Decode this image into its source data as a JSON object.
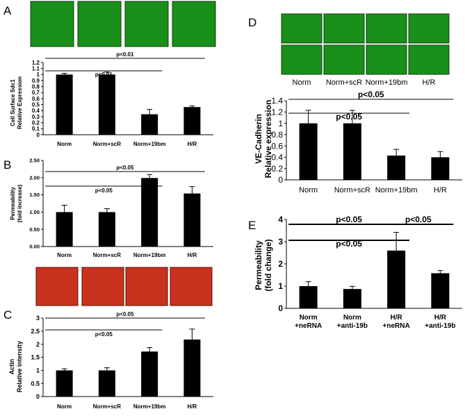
{
  "panels": {
    "A": {
      "label": "A",
      "ylabel_lines": [
        "Cell Surface Sdc1",
        "Relative Expression"
      ]
    },
    "B": {
      "label": "B",
      "ylabel_lines": [
        "Permeability",
        "(fold increase)"
      ]
    },
    "C": {
      "label": "C",
      "ylabel_lines": [
        "Actin",
        "Relative intensity"
      ]
    },
    "D": {
      "label": "D",
      "ylabel_lines": [
        "VE-Cadherin",
        "Relative expression"
      ],
      "image_labels": [
        "Norm",
        "Norm+scR",
        "Norm+19bm",
        "H/R"
      ]
    },
    "E": {
      "label": "E",
      "ylabel_lines": [
        "Permeability",
        "(fold change)"
      ]
    }
  },
  "colors": {
    "bar": "#000000",
    "green_image": "#1a8f1a",
    "red_image": "#c8321e"
  },
  "chart_data": [
    {
      "panel": "A",
      "type": "bar",
      "categories": [
        "Norm",
        "Norm+scR",
        "Norm+19bm",
        "H/R"
      ],
      "values": [
        1.0,
        1.0,
        0.34,
        0.46
      ],
      "errors": [
        0.02,
        0.04,
        0.08,
        0.02
      ],
      "ylim": [
        0,
        1.2
      ],
      "yticks": [
        0,
        0.1,
        0.2,
        0.3,
        0.4,
        0.5,
        0.6,
        0.7,
        0.8,
        0.9,
        1,
        1.1,
        1.2
      ],
      "yticklabels": [
        "0",
        "0.1",
        "0.2",
        "0.3",
        "0.4",
        "0.5",
        "0.6",
        "0.7",
        "0.8",
        "0.9",
        "1",
        "1.1",
        "1.2"
      ],
      "annotations": [
        {
          "text": "p<0.01",
          "from": 0,
          "to": 3
        },
        {
          "text": "p<0.01",
          "from": 0,
          "to": 2
        }
      ]
    },
    {
      "panel": "B",
      "type": "bar",
      "categories": [
        "Norm",
        "Norm+scR",
        "Norm+19bm",
        "H/R"
      ],
      "values": [
        1.0,
        1.0,
        1.99,
        1.54
      ],
      "errors": [
        0.2,
        0.1,
        0.1,
        0.2
      ],
      "ylim": [
        0,
        2.5
      ],
      "yticks": [
        0,
        0.5,
        1,
        1.5,
        2,
        2.5
      ],
      "yticklabels": [
        "0.00",
        "0.50",
        "1.00",
        "1.50",
        "2.00",
        "2.50"
      ],
      "annotations": [
        {
          "text": "p<0.05",
          "from": 0,
          "to": 3
        },
        {
          "text": "p<0.05",
          "from": 0,
          "to": 2
        }
      ]
    },
    {
      "panel": "C",
      "type": "bar",
      "categories": [
        "Norm",
        "Norm+scR",
        "Norm+19bm",
        "H/R"
      ],
      "values": [
        1.0,
        1.0,
        1.72,
        2.18
      ],
      "errors": [
        0.06,
        0.1,
        0.15,
        0.4
      ],
      "ylim": [
        0,
        3
      ],
      "yticks": [
        0,
        0.5,
        1,
        1.5,
        2,
        2.5,
        3
      ],
      "yticklabels": [
        "0",
        "0.5",
        "1",
        "1.5",
        "2",
        "2.5",
        "3"
      ],
      "annotations": [
        {
          "text": "p<0.05",
          "from": 0,
          "to": 3
        },
        {
          "text": "p<0.05",
          "from": 0,
          "to": 2
        }
      ]
    },
    {
      "panel": "D",
      "type": "bar",
      "categories": [
        "Norm",
        "Norm+scR",
        "Norm+19bm",
        "H/R"
      ],
      "values": [
        1.0,
        1.0,
        0.43,
        0.4
      ],
      "errors": [
        0.23,
        0.23,
        0.11,
        0.1
      ],
      "ylim": [
        0,
        1.4
      ],
      "yticks": [
        0,
        0.2,
        0.4,
        0.6,
        0.8,
        1,
        1.2,
        1.4
      ],
      "yticklabels": [
        "0",
        "0.2",
        "0.4",
        "0.6",
        "0.8",
        "1",
        "1.2",
        "1.4"
      ],
      "annotations": [
        {
          "text": "p<0.05",
          "from": 0,
          "to": 3
        },
        {
          "text": "p<0.05",
          "from": 0,
          "to": 2
        }
      ]
    },
    {
      "panel": "E",
      "type": "bar",
      "categories": [
        "Norm\n+neRNA",
        "Norm\n+anti-19b",
        "H/R\n+neRNA",
        "H/R\n+anti-19b"
      ],
      "values": [
        1.0,
        0.87,
        2.6,
        1.58
      ],
      "errors": [
        0.2,
        0.12,
        0.82,
        0.12
      ],
      "ylim": [
        0,
        4
      ],
      "yticks": [
        0,
        1,
        2,
        3,
        4
      ],
      "yticklabels": [
        "0",
        "1",
        "2",
        "3",
        "4"
      ],
      "annotations": [
        {
          "text": "p<0.05",
          "from": 0,
          "to": 2
        },
        {
          "text": "p<0.05",
          "from": 0,
          "to": 2
        },
        {
          "text": "p<0.05",
          "from": 2,
          "to": 3
        }
      ]
    }
  ]
}
